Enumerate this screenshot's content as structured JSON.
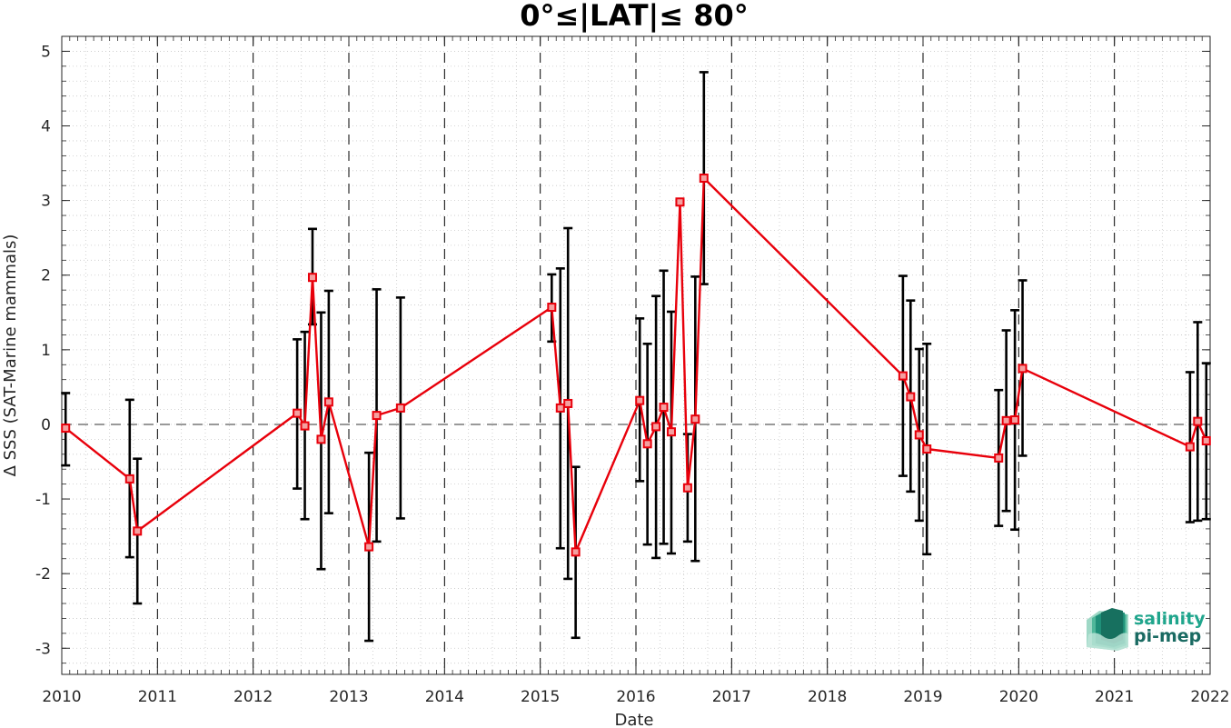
{
  "chart_data": {
    "type": "line",
    "title": "0°≤|LAT|≤ 80°",
    "xlabel": "Date",
    "ylabel": "Δ SSS (SAT-Marine mammals)",
    "xlim": [
      2010,
      2022
    ],
    "ylim": [
      -3.35,
      5.2
    ],
    "x_ticks": [
      "2010",
      "2011",
      "2012",
      "2013",
      "2014",
      "2015",
      "2016",
      "2017",
      "2018",
      "2019",
      "2020",
      "2021",
      "2022"
    ],
    "y_ticks": [
      "5",
      "4",
      "3",
      "2",
      "1",
      "0",
      "-1",
      "-2",
      "-3"
    ],
    "grid": "dotted minor grid, dashed vertical lines at each year",
    "zero_line": 0,
    "series": [
      {
        "color": "#e8000b",
        "marker": "square",
        "errorbar_color": "#000000",
        "points": [
          {
            "x": 2010.04,
            "y": -0.05,
            "lo": -0.55,
            "hi": 0.42
          },
          {
            "x": 2010.71,
            "y": -0.73,
            "lo": -1.78,
            "hi": 0.33
          },
          {
            "x": 2010.79,
            "y": -1.43,
            "lo": -2.4,
            "hi": -0.46
          },
          {
            "x": 2012.46,
            "y": 0.15,
            "lo": -0.86,
            "hi": 1.14
          },
          {
            "x": 2012.54,
            "y": -0.02,
            "lo": -1.27,
            "hi": 1.24
          },
          {
            "x": 2012.62,
            "y": 1.97,
            "lo": 1.34,
            "hi": 2.62
          },
          {
            "x": 2012.71,
            "y": -0.2,
            "lo": -1.94,
            "hi": 1.5
          },
          {
            "x": 2012.79,
            "y": 0.3,
            "lo": -1.19,
            "hi": 1.79
          },
          {
            "x": 2013.21,
            "y": -1.64,
            "lo": -2.9,
            "hi": -0.38
          },
          {
            "x": 2013.29,
            "y": 0.12,
            "lo": -1.57,
            "hi": 1.81
          },
          {
            "x": 2013.54,
            "y": 0.22,
            "lo": -1.26,
            "hi": 1.7
          },
          {
            "x": 2015.12,
            "y": 1.57,
            "lo": 1.11,
            "hi": 2.01
          },
          {
            "x": 2015.21,
            "y": 0.22,
            "lo": -1.66,
            "hi": 2.09
          },
          {
            "x": 2015.29,
            "y": 0.28,
            "lo": -2.07,
            "hi": 2.63
          },
          {
            "x": 2015.37,
            "y": -1.71,
            "lo": -2.86,
            "hi": -0.57
          },
          {
            "x": 2016.04,
            "y": 0.32,
            "lo": -0.76,
            "hi": 1.42
          },
          {
            "x": 2016.12,
            "y": -0.26,
            "lo": -1.61,
            "hi": 1.08
          },
          {
            "x": 2016.21,
            "y": -0.03,
            "lo": -1.79,
            "hi": 1.72
          },
          {
            "x": 2016.29,
            "y": 0.23,
            "lo": -1.6,
            "hi": 2.06
          },
          {
            "x": 2016.37,
            "y": -0.1,
            "lo": -1.73,
            "hi": 1.51
          },
          {
            "x": 2016.46,
            "y": 2.98,
            "lo": 2.95,
            "hi": 3.0
          },
          {
            "x": 2016.54,
            "y": -0.85,
            "lo": -1.57,
            "hi": -0.13
          },
          {
            "x": 2016.62,
            "y": 0.07,
            "lo": -1.83,
            "hi": 1.98
          },
          {
            "x": 2016.71,
            "y": 3.3,
            "lo": 1.88,
            "hi": 4.72
          },
          {
            "x": 2018.79,
            "y": 0.65,
            "lo": -0.69,
            "hi": 1.99
          },
          {
            "x": 2018.87,
            "y": 0.37,
            "lo": -0.9,
            "hi": 1.66
          },
          {
            "x": 2018.96,
            "y": -0.14,
            "lo": -1.29,
            "hi": 1.01
          },
          {
            "x": 2019.04,
            "y": -0.33,
            "lo": -1.74,
            "hi": 1.08
          },
          {
            "x": 2019.79,
            "y": -0.45,
            "lo": -1.36,
            "hi": 0.46
          },
          {
            "x": 2019.87,
            "y": 0.05,
            "lo": -1.16,
            "hi": 1.26
          },
          {
            "x": 2019.96,
            "y": 0.06,
            "lo": -1.41,
            "hi": 1.53
          },
          {
            "x": 2020.04,
            "y": 0.75,
            "lo": -0.42,
            "hi": 1.93
          },
          {
            "x": 2021.79,
            "y": -0.3,
            "lo": -1.31,
            "hi": 0.7
          },
          {
            "x": 2021.87,
            "y": 0.04,
            "lo": -1.29,
            "hi": 1.37
          },
          {
            "x": 2021.96,
            "y": -0.22,
            "lo": -1.27,
            "hi": 0.82
          }
        ]
      }
    ]
  },
  "logo": {
    "line1": "salinity",
    "line2": "pi-mep",
    "color1": "#1fa58c",
    "color2": "#1a6a62"
  }
}
